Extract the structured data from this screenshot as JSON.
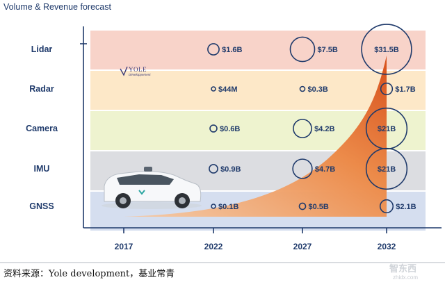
{
  "chart_data": {
    "type": "bubble",
    "title": "Volume & Revenue forecast",
    "categories": [
      "2017",
      "2022",
      "2027",
      "2032"
    ],
    "rows": [
      {
        "name": "Lidar",
        "color": "#f8d3c9",
        "values": [
          null,
          1.6,
          7.5,
          31.5
        ],
        "labels": [
          null,
          "$1.6B",
          "$7.5B",
          "$31.5B"
        ]
      },
      {
        "name": "Radar",
        "color": "#fde8c8",
        "values": [
          null,
          0.044,
          0.3,
          1.7
        ],
        "labels": [
          null,
          "$44M",
          "$0.3B",
          "$1.7B"
        ]
      },
      {
        "name": "Camera",
        "color": "#eef3cf",
        "values": [
          null,
          0.6,
          4.2,
          21
        ],
        "labels": [
          null,
          "$0.6B",
          "$4.2B",
          "$21B"
        ]
      },
      {
        "name": "IMU",
        "color": "#dcdde1",
        "values": [
          null,
          0.9,
          4.7,
          21
        ],
        "labels": [
          null,
          "$0.9B",
          "$4.7B",
          "$21B"
        ]
      },
      {
        "name": "GNSS",
        "color": "#d5deef",
        "values": [
          null,
          0.1,
          0.5,
          2.1
        ],
        "labels": [
          null,
          "$0.1B",
          "$0.5B",
          "$2.1B"
        ]
      }
    ],
    "area_trend": {
      "description": "growth area",
      "color_start": "#f6c9a3",
      "color_end": "#d9541e"
    },
    "xlabel": "",
    "ylabel": ""
  },
  "logo": {
    "brand": "YOLE",
    "tagline": "Développement"
  },
  "source_note": "资料来源：Yole development，基业常青",
  "watermark": {
    "text": "智东西",
    "url": "zhidx.com"
  }
}
